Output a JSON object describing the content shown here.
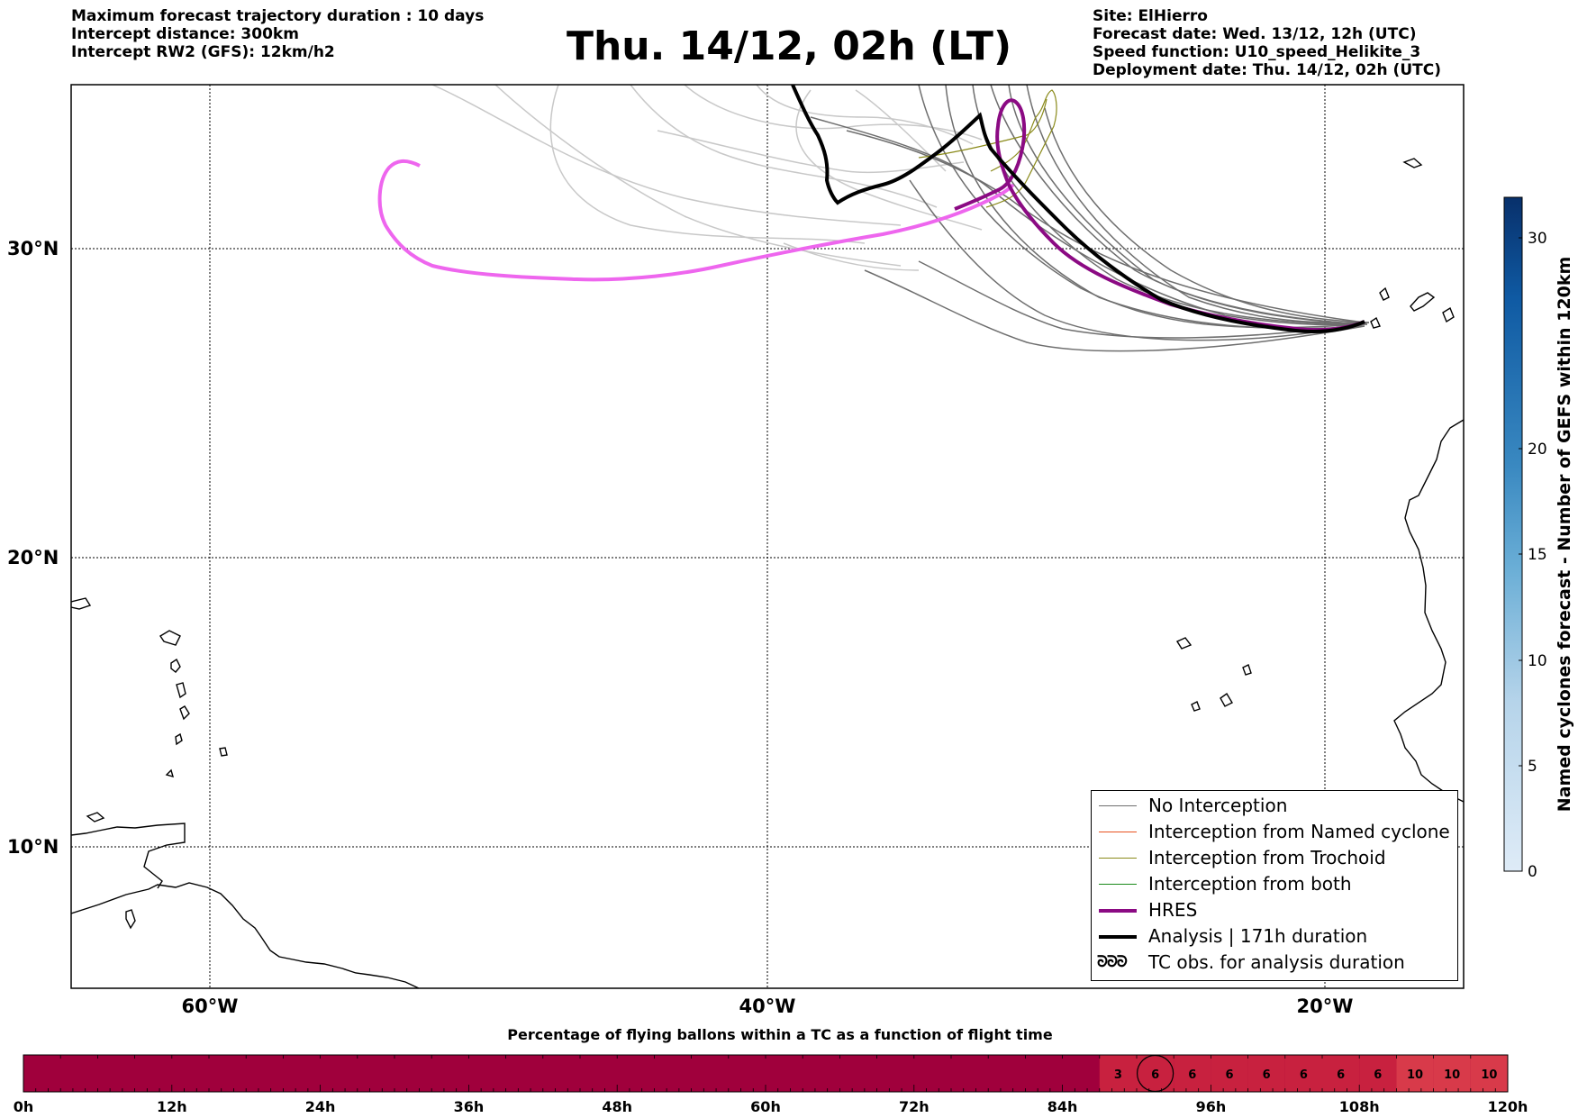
{
  "header": {
    "left_lines": [
      "Maximum forecast trajectory duration : 10 days",
      "Intercept distance: 300km",
      "Intercept RW2 (GFS):  12km/h2"
    ],
    "title": "Thu. 14/12, 02h (LT)",
    "right_lines": [
      "Site: ElHierro",
      "Forecast date: Wed. 13/12, 12h (UTC)",
      "Speed function: U10_speed_Helikite_3",
      "Deployment date: Thu. 14/12, 02h (UTC)"
    ]
  },
  "map": {
    "lat_labels": [
      "30°N",
      "20°N",
      "10°N"
    ],
    "lon_labels": [
      "60°W",
      "40°W",
      "20°W"
    ],
    "colors": {
      "gefs": "#6e6e6e",
      "gefs_light": "#c8c8c8",
      "hres": "#8b0a83",
      "analysis": "#000000",
      "trochoid": "#8a8a1a",
      "pink": "#ee66ee",
      "named": "#e8531f",
      "both": "#1a8a1a"
    }
  },
  "legend": {
    "items": [
      {
        "label": "No Interception",
        "color": "#6e6e6e",
        "width": 1
      },
      {
        "label": "Interception from Named cyclone",
        "color": "#e8531f",
        "width": 1
      },
      {
        "label": "Interception from Trochoid",
        "color": "#8a8a1a",
        "width": 1
      },
      {
        "label": "Interception from both",
        "color": "#1a8a1a",
        "width": 1
      },
      {
        "label": "HRES",
        "color": "#8b0a83",
        "width": 4
      },
      {
        "label": "Analysis | 171h duration",
        "color": "#000000",
        "width": 4
      },
      {
        "label": "TC obs. for analysis duration",
        "color": "",
        "width": 0
      }
    ],
    "tc_symbol": "ᘐᘐᘐ"
  },
  "colorbar": {
    "label": "Named cyclones forecast - Number of GEFS within 120km",
    "ticks": [
      "0",
      "5",
      "10",
      "15",
      "20",
      "30"
    ]
  },
  "timeline": {
    "title": "Percentage of flying ballons within a TC as a function of flight time",
    "tick_labels": [
      "0h",
      "12h",
      "24h",
      "36h",
      "48h",
      "60h",
      "72h",
      "84h",
      "96h",
      "108h",
      "120h"
    ],
    "cell_values": [
      "3",
      "6",
      "6",
      "6",
      "6",
      "6",
      "6",
      "6",
      "10",
      "10",
      "10"
    ],
    "base_color": "#a0003c",
    "cell_color": "#c8213f",
    "cell_color_high": "#d83a4a",
    "circled_value": "6"
  }
}
